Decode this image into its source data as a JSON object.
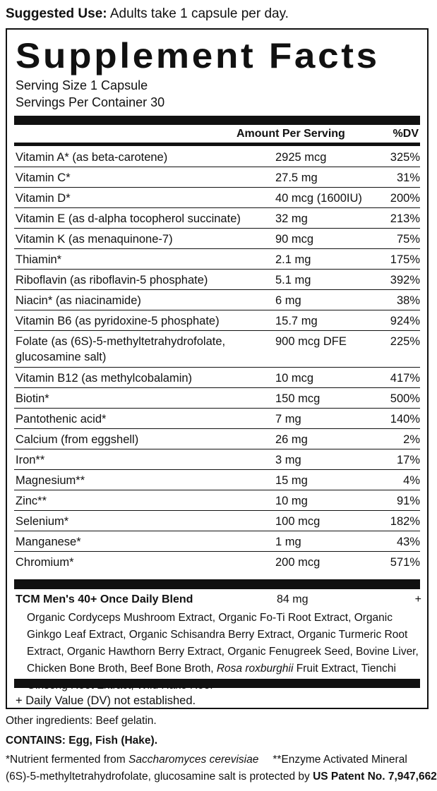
{
  "suggested_use": {
    "label": "Suggested Use:",
    "text": "Adults take 1 capsule per day."
  },
  "panel": {
    "title": "Supplement Facts",
    "serving_size": "Serving Size 1 Capsule",
    "servings_per_container": "Servings Per Container 30",
    "header_amount": "Amount Per Serving",
    "header_dv": "%DV"
  },
  "nutrients": [
    {
      "name": "Vitamin A* (as beta-carotene)",
      "amount": "2925 mcg",
      "dv": "325%"
    },
    {
      "name": "Vitamin C*",
      "amount": "27.5 mg",
      "dv": "31%"
    },
    {
      "name": "Vitamin D*",
      "amount": "40 mcg (1600IU)",
      "dv": "200%"
    },
    {
      "name": "Vitamin E (as d-alpha tocopherol succinate)",
      "amount": "32 mg",
      "dv": "213%"
    },
    {
      "name": "Vitamin K (as menaquinone-7)",
      "amount": "90 mcg",
      "dv": "75%"
    },
    {
      "name": "Thiamin*",
      "amount": "2.1 mg",
      "dv": "175%"
    },
    {
      "name": "Riboflavin (as riboflavin-5 phosphate)",
      "amount": "5.1 mg",
      "dv": "392%"
    },
    {
      "name": "Niacin* (as niacinamide)",
      "amount": "6 mg",
      "dv": "38%"
    },
    {
      "name": "Vitamin B6 (as pyridoxine-5 phosphate)",
      "amount": "15.7 mg",
      "dv": "924%"
    },
    {
      "name": "Folate (as (6S)-5-methyltetrahydrofolate,\nglucosamine salt)",
      "amount": "900 mcg DFE",
      "dv": "225%"
    },
    {
      "name": "Vitamin B12 (as methylcobalamin)",
      "amount": "10 mcg",
      "dv": "417%"
    },
    {
      "name": "Biotin*",
      "amount": "150 mcg",
      "dv": "500%"
    },
    {
      "name": "Pantothenic acid*",
      "amount": "7 mg",
      "dv": "140%"
    },
    {
      "name": "Calcium (from eggshell)",
      "amount": "26 mg",
      "dv": "2%"
    },
    {
      "name": "Iron**",
      "amount": "3 mg",
      "dv": "17%"
    },
    {
      "name": "Magnesium**",
      "amount": "15 mg",
      "dv": "4%"
    },
    {
      "name": "Zinc**",
      "amount": "10 mg",
      "dv": "91%"
    },
    {
      "name": "Selenium*",
      "amount": "100 mcg",
      "dv": "182%"
    },
    {
      "name": "Manganese*",
      "amount": "1 mg",
      "dv": "43%"
    },
    {
      "name": "Chromium*",
      "amount": "200 mcg",
      "dv": "571%"
    }
  ],
  "blend": {
    "name": "TCM Men's 40+ Once Daily Blend",
    "amount": "84 mg",
    "dv": "+",
    "ingredients_part1": "Organic Cordyceps Mushroom Extract, Organic Fo-Ti Root Extract, Organic Ginkgo Leaf Extract, Organic Schisandra Berry Extract, Organic Turmeric Root Extract, Organic Hawthorn Berry Extract, Organic Fenugreek Seed, Bovine Liver, Chicken Bone Broth, Beef Bone Broth, ",
    "ingredients_italic": "Rosa roxburghii",
    "ingredients_part2": " Fruit Extract, Tienchi Ginseng Root Extract, Wild Hake Roe."
  },
  "dv_footnote": "+ Daily Value (DV) not established.",
  "other_ingredients": "Other ingredients: Beef gelatin.",
  "contains": "CONTAINS: Egg, Fish (Hake).",
  "footnotes": {
    "fermented_prefix": "*Nutrient fermented from ",
    "fermented_italic": "Saccharomyces cerevisiae",
    "enzyme": "**Enzyme Activated Mineral",
    "patent_text": "(6S)-5-methyltetrahydrofolate, glucosamine salt is protected by ",
    "patent_number": "US Patent No. 7,947,662"
  }
}
